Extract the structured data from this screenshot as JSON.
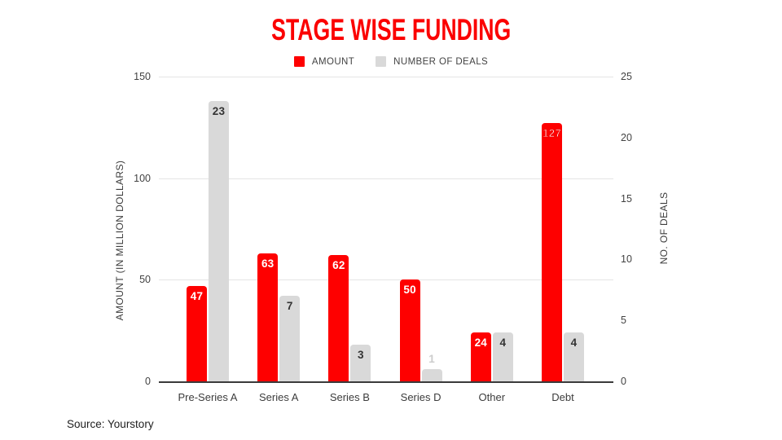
{
  "title": "STAGE WISE FUNDING",
  "source": "Source: Yourstory",
  "colors": {
    "accent_red": "#fb0000",
    "bar_red": "#fe0000",
    "bar_gray": "#d9d9d9",
    "gridline": "#e4e4e4",
    "axis_line": "#3b3b3b",
    "label_on_red": "#ffffff",
    "label_on_gray": "#333333",
    "label_light": "#cccccc"
  },
  "legend": [
    {
      "label": "AMOUNT",
      "color": "#fe0000"
    },
    {
      "label": "NUMBER OF DEALS",
      "color": "#d9d9d9"
    }
  ],
  "chart_data": {
    "type": "bar",
    "title": "STAGE WISE FUNDING",
    "categories": [
      "Pre-Series A",
      "Series A",
      "Series B",
      "Series D",
      "Other",
      "Debt"
    ],
    "series": [
      {
        "name": "AMOUNT",
        "axis": "left",
        "color": "#fe0000",
        "values": [
          47,
          63,
          62,
          50,
          24,
          127
        ]
      },
      {
        "name": "NUMBER OF DEALS",
        "axis": "right",
        "color": "#d9d9d9",
        "values": [
          23,
          7,
          3,
          1,
          4,
          4
        ]
      }
    ],
    "left_axis": {
      "label": "AMOUNT (IN MILLION DOLLARS)",
      "ticks": [
        0,
        50,
        100,
        150
      ],
      "range": [
        0,
        150
      ]
    },
    "right_axis": {
      "label": "NO. OF DEALS",
      "ticks": [
        0,
        5,
        10,
        15,
        20,
        25
      ],
      "range": [
        0,
        25
      ]
    },
    "grid": true,
    "legend_position": "top",
    "value_labels": true
  }
}
